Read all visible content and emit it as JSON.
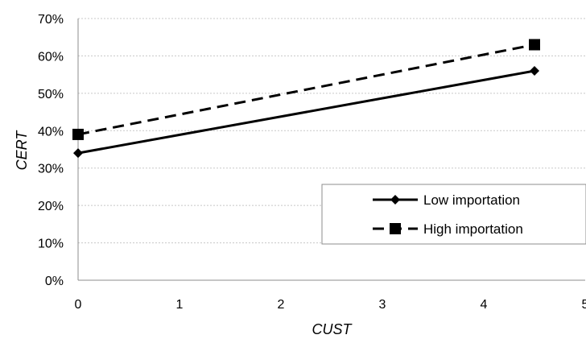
{
  "chart_data": {
    "type": "line",
    "xlabel": "CUST",
    "ylabel": "CERT",
    "xlim": [
      0,
      5
    ],
    "ylim": [
      0,
      70
    ],
    "x_ticks": [
      "0",
      "1",
      "2",
      "3",
      "4",
      "5"
    ],
    "y_ticks": [
      "0%",
      "10%",
      "20%",
      "30%",
      "40%",
      "50%",
      "60%",
      "70%"
    ],
    "grid": "horizontal dashed",
    "legend_position": "right",
    "series": [
      {
        "name": "Low importation",
        "x": [
          0,
          4.5
        ],
        "y": [
          34,
          56
        ],
        "line_style": "solid",
        "marker": "diamond",
        "color": "#000000"
      },
      {
        "name": "High importation",
        "x": [
          0,
          4.5
        ],
        "y": [
          39,
          63
        ],
        "line_style": "dashed",
        "marker": "square",
        "color": "#000000"
      }
    ]
  }
}
